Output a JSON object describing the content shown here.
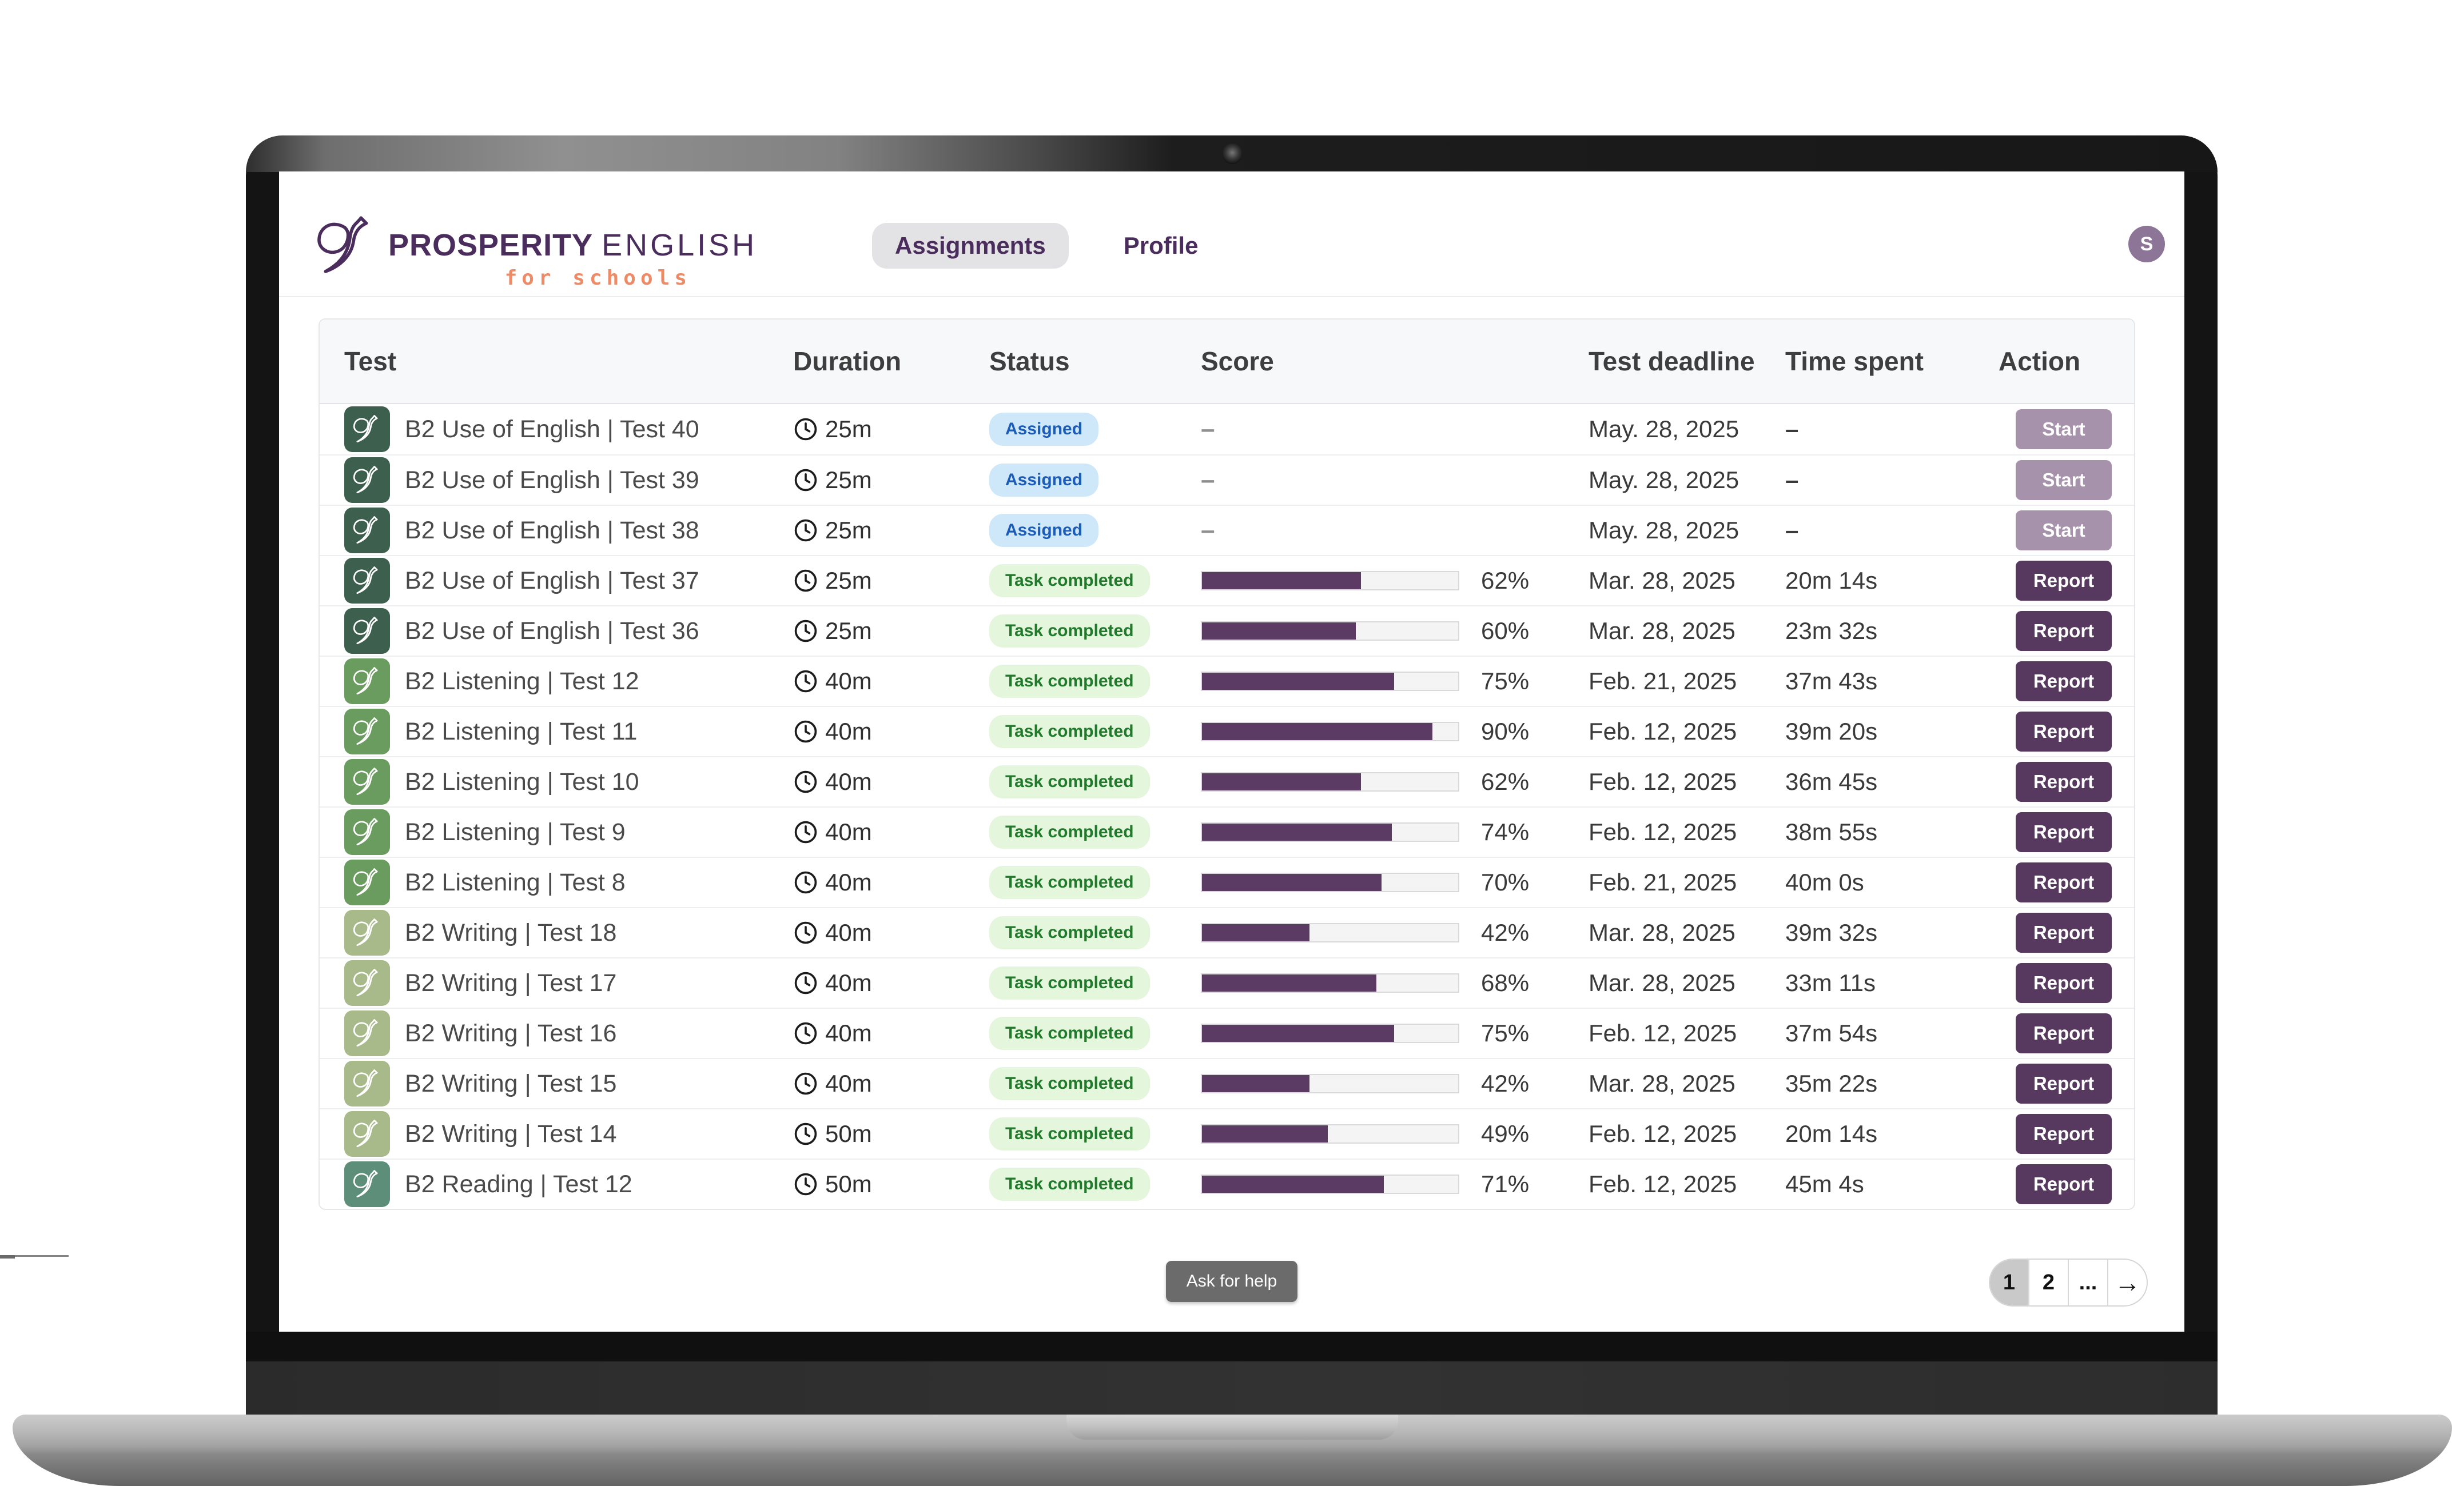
{
  "brand": {
    "name_primary": "PROSPERITY",
    "name_secondary": "ENGLISH",
    "tagline": "for schools"
  },
  "nav": {
    "items": [
      {
        "label": "Assignments",
        "active": true
      },
      {
        "label": "Profile",
        "active": false
      }
    ],
    "avatar_initial": "S"
  },
  "table": {
    "columns": [
      "Test",
      "Duration",
      "Status",
      "Score",
      "Test deadline",
      "Time spent",
      "Action"
    ],
    "rows": [
      {
        "test": "B2 Use of English | Test 40",
        "duration": "25m",
        "status": "Assigned",
        "status_type": "assigned",
        "score_pct": null,
        "score_label": "–",
        "deadline": "May. 28, 2025",
        "time_spent": "–",
        "action": "Start",
        "action_type": "start",
        "icon_color": "#3d5f4e"
      },
      {
        "test": "B2 Use of English | Test 39",
        "duration": "25m",
        "status": "Assigned",
        "status_type": "assigned",
        "score_pct": null,
        "score_label": "–",
        "deadline": "May. 28, 2025",
        "time_spent": "–",
        "action": "Start",
        "action_type": "start",
        "icon_color": "#3d5f4e"
      },
      {
        "test": "B2 Use of English | Test 38",
        "duration": "25m",
        "status": "Assigned",
        "status_type": "assigned",
        "score_pct": null,
        "score_label": "–",
        "deadline": "May. 28, 2025",
        "time_spent": "–",
        "action": "Start",
        "action_type": "start",
        "icon_color": "#3d5f4e"
      },
      {
        "test": "B2 Use of English | Test 37",
        "duration": "25m",
        "status": "Task completed",
        "status_type": "completed",
        "score_pct": 62,
        "score_label": "62%",
        "deadline": "Mar. 28, 2025",
        "time_spent": "20m 14s",
        "action": "Report",
        "action_type": "report",
        "icon_color": "#3d5f4e"
      },
      {
        "test": "B2 Use of English | Test 36",
        "duration": "25m",
        "status": "Task completed",
        "status_type": "completed",
        "score_pct": 60,
        "score_label": "60%",
        "deadline": "Mar. 28, 2025",
        "time_spent": "23m 32s",
        "action": "Report",
        "action_type": "report",
        "icon_color": "#3d5f4e"
      },
      {
        "test": "B2 Listening | Test 12",
        "duration": "40m",
        "status": "Task completed",
        "status_type": "completed",
        "score_pct": 75,
        "score_label": "75%",
        "deadline": "Feb. 21, 2025",
        "time_spent": "37m 43s",
        "action": "Report",
        "action_type": "report",
        "icon_color": "#6a9c5f"
      },
      {
        "test": "B2 Listening | Test 11",
        "duration": "40m",
        "status": "Task completed",
        "status_type": "completed",
        "score_pct": 90,
        "score_label": "90%",
        "deadline": "Feb. 12, 2025",
        "time_spent": "39m 20s",
        "action": "Report",
        "action_type": "report",
        "icon_color": "#6a9c5f"
      },
      {
        "test": "B2 Listening | Test 10",
        "duration": "40m",
        "status": "Task completed",
        "status_type": "completed",
        "score_pct": 62,
        "score_label": "62%",
        "deadline": "Feb. 12, 2025",
        "time_spent": "36m 45s",
        "action": "Report",
        "action_type": "report",
        "icon_color": "#6a9c5f"
      },
      {
        "test": "B2 Listening | Test 9",
        "duration": "40m",
        "status": "Task completed",
        "status_type": "completed",
        "score_pct": 74,
        "score_label": "74%",
        "deadline": "Feb. 12, 2025",
        "time_spent": "38m 55s",
        "action": "Report",
        "action_type": "report",
        "icon_color": "#6a9c5f"
      },
      {
        "test": "B2 Listening | Test 8",
        "duration": "40m",
        "status": "Task completed",
        "status_type": "completed",
        "score_pct": 70,
        "score_label": "70%",
        "deadline": "Feb. 21, 2025",
        "time_spent": "40m 0s",
        "action": "Report",
        "action_type": "report",
        "icon_color": "#6a9c5f"
      },
      {
        "test": "B2 Writing | Test 18",
        "duration": "40m",
        "status": "Task completed",
        "status_type": "completed",
        "score_pct": 42,
        "score_label": "42%",
        "deadline": "Mar. 28, 2025",
        "time_spent": "39m 32s",
        "action": "Report",
        "action_type": "report",
        "icon_color": "#a8ba8a"
      },
      {
        "test": "B2 Writing | Test 17",
        "duration": "40m",
        "status": "Task completed",
        "status_type": "completed",
        "score_pct": 68,
        "score_label": "68%",
        "deadline": "Mar. 28, 2025",
        "time_spent": "33m 11s",
        "action": "Report",
        "action_type": "report",
        "icon_color": "#a8ba8a"
      },
      {
        "test": "B2 Writing | Test 16",
        "duration": "40m",
        "status": "Task completed",
        "status_type": "completed",
        "score_pct": 75,
        "score_label": "75%",
        "deadline": "Feb. 12, 2025",
        "time_spent": "37m 54s",
        "action": "Report",
        "action_type": "report",
        "icon_color": "#a8ba8a"
      },
      {
        "test": "B2 Writing | Test 15",
        "duration": "40m",
        "status": "Task completed",
        "status_type": "completed",
        "score_pct": 42,
        "score_label": "42%",
        "deadline": "Mar. 28, 2025",
        "time_spent": "35m 22s",
        "action": "Report",
        "action_type": "report",
        "icon_color": "#a8ba8a"
      },
      {
        "test": "B2 Writing | Test 14",
        "duration": "50m",
        "status": "Task completed",
        "status_type": "completed",
        "score_pct": 49,
        "score_label": "49%",
        "deadline": "Feb. 12, 2025",
        "time_spent": "20m 14s",
        "action": "Report",
        "action_type": "report",
        "icon_color": "#a8ba8a"
      },
      {
        "test": "B2 Reading | Test 12",
        "duration": "50m",
        "status": "Task completed",
        "status_type": "completed",
        "score_pct": 71,
        "score_label": "71%",
        "deadline": "Feb. 12, 2025",
        "time_spent": "45m 4s",
        "action": "Report",
        "action_type": "report",
        "icon_color": "#5c8e7a"
      }
    ]
  },
  "footer": {
    "help_label": "Ask for help",
    "pagination": [
      {
        "label": "1",
        "active": true,
        "arrow": false
      },
      {
        "label": "2",
        "active": false,
        "arrow": false
      },
      {
        "label": "...",
        "active": false,
        "arrow": false
      },
      {
        "label": "→",
        "active": false,
        "arrow": true
      }
    ]
  },
  "colors": {
    "brand_purple": "#4a2d5c",
    "brand_coral": "#ef8a67",
    "progress_fill": "#5b3a64",
    "report_button": "#573960",
    "start_button": "#a792ab",
    "assigned_badge_bg": "#cfe8f9",
    "assigned_badge_text": "#1b5cb8",
    "completed_badge_bg": "#e4f6dc",
    "completed_badge_text": "#217a2b",
    "icon_use_of_english": "#3d5f4e",
    "icon_listening": "#6a9c5f",
    "icon_writing": "#a8ba8a",
    "icon_reading": "#5c8e7a"
  }
}
